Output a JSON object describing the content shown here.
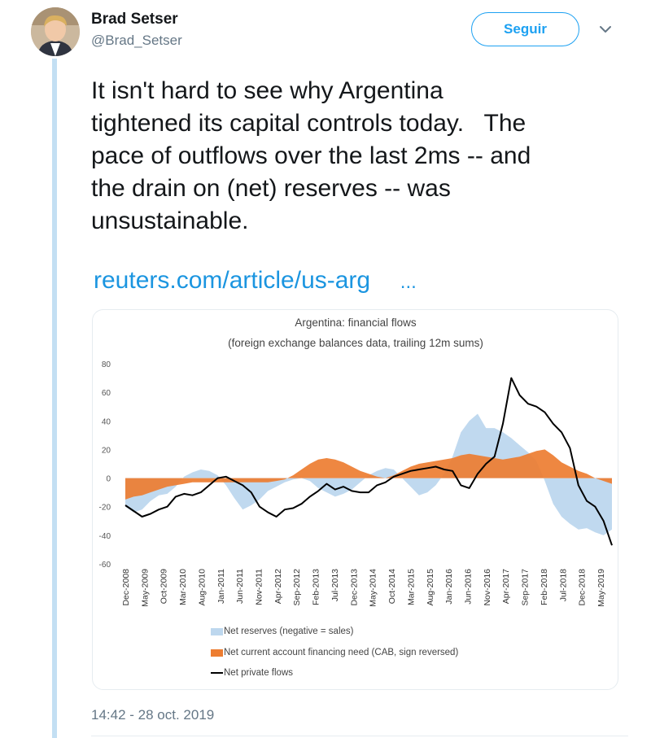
{
  "tweet": {
    "author_name": "Brad Setser",
    "author_handle": "@Brad_Setser",
    "follow_label": "Seguir",
    "text": "It isn't hard to see why Argentina\ntightened its capital controls today.   The\npace of outflows over the last 2ms -- and\nthe drain on (net) reserves -- was\nunsustainable.",
    "link_text": "reuters.com/article/us-arg",
    "link_ellipsis": "...",
    "timestamp": "14:42 - 28 oct. 2019"
  },
  "colors": {
    "accent": "#1da1f2",
    "thread_line": "#c3dff3",
    "reserves": "#bdd7ee",
    "current_account": "#ed7d31",
    "private_flows": "#000000"
  },
  "icons": {
    "caret": "chevron-down-icon"
  },
  "chart_data": {
    "type": "area",
    "title": "Argentina: financial flows",
    "subtitle": "(foreign exchange balances data, trailing 12m sums)",
    "ylim": [
      -60,
      80
    ],
    "y_ticks": [
      "80",
      "60",
      "40",
      "20",
      "0",
      "-20",
      "-40",
      "-60"
    ],
    "x_ticks": [
      "Dec-2008",
      "May-2009",
      "Oct-2009",
      "Mar-2010",
      "Aug-2010",
      "Jan-2011",
      "Jun-2011",
      "Nov-2011",
      "Apr-2012",
      "Sep-2012",
      "Feb-2013",
      "Jul-2013",
      "Dec-2013",
      "May-2014",
      "Oct-2014",
      "Mar-2015",
      "Aug-2015",
      "Jan-2016",
      "Jun-2016",
      "Nov-2016",
      "Apr-2017",
      "Sep-2017",
      "Feb-2018",
      "Jul-2018",
      "Dec-2018",
      "May-2019"
    ],
    "grid": false,
    "legend_position": "bottom",
    "series": [
      {
        "name": "Net reserves (negative = sales)",
        "kind": "area",
        "values": [
          -20,
          -24,
          -22,
          -16,
          -12,
          -11,
          -6,
          1,
          4,
          6,
          5,
          2,
          -5,
          -14,
          -22,
          -19,
          -15,
          -9,
          -6,
          -3,
          -1,
          0,
          -2,
          -7,
          -10,
          -13,
          -11,
          -8,
          -3,
          2,
          5,
          7,
          6,
          0,
          -6,
          -12,
          -10,
          -5,
          3,
          15,
          32,
          40,
          45,
          35,
          35,
          32,
          28,
          23,
          18,
          12,
          -2,
          -18,
          -27,
          -32,
          -36,
          -35,
          -38,
          -40,
          -36
        ]
      },
      {
        "name": "Net current account financing need (CAB, sign reversed)",
        "kind": "area",
        "values": [
          -15,
          -13,
          -12,
          -10,
          -8,
          -6,
          -5,
          -4,
          -3,
          -3,
          -3,
          -3,
          -3,
          -3,
          -3,
          -3,
          -3,
          -3,
          -2,
          -1,
          2,
          6,
          10,
          13,
          14,
          13,
          11,
          8,
          5,
          3,
          1,
          0,
          2,
          5,
          8,
          10,
          11,
          12,
          13,
          14,
          16,
          17,
          16,
          15,
          14,
          13,
          14,
          15,
          17,
          19,
          20,
          16,
          11,
          8,
          5,
          3,
          0,
          -2,
          -4
        ]
      },
      {
        "name": "Net private flows",
        "kind": "line",
        "values": [
          -19,
          -23,
          -27,
          -25,
          -22,
          -20,
          -13,
          -11,
          -12,
          -10,
          -5,
          0,
          1,
          -2,
          -5,
          -10,
          -20,
          -24,
          -27,
          -22,
          -21,
          -18,
          -13,
          -9,
          -4,
          -8,
          -6,
          -9,
          -10,
          -10,
          -5,
          -3,
          1,
          3,
          5,
          6,
          7,
          8,
          6,
          5,
          -5,
          -7,
          3,
          10,
          15,
          38,
          70,
          58,
          52,
          50,
          46,
          38,
          32,
          21,
          -5,
          -16,
          -20,
          -30,
          -47
        ]
      }
    ]
  }
}
